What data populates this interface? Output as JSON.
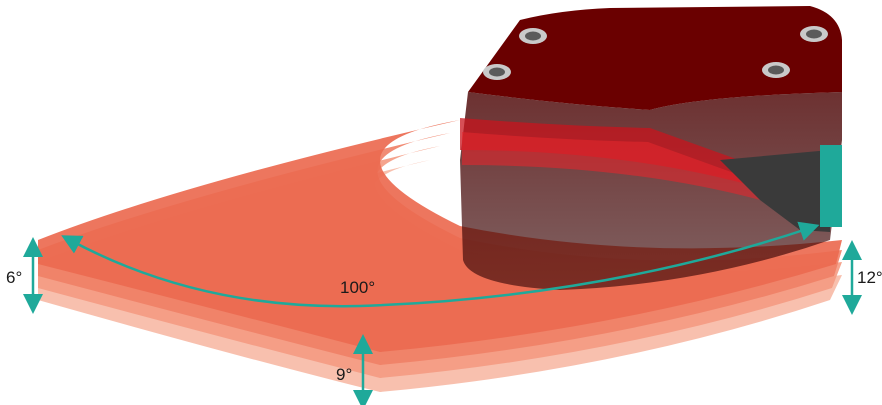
{
  "labels": {
    "horizontal_angle": "100°",
    "angle_left": "6°",
    "angle_right": "12°",
    "angle_bottom": "9°"
  },
  "colors": {
    "beam_layer_1": "#f7b9a5",
    "beam_layer_2": "#f49a82",
    "beam_layer_3": "#f07f66",
    "beam_layer_4": "#ec6a50",
    "sensor_top": "#6a0000",
    "sensor_side": "#2a0000",
    "sensor_dark": "#3a3a3a",
    "connector": "#1fa99a",
    "dimension_arrow": "#1fa99a"
  }
}
